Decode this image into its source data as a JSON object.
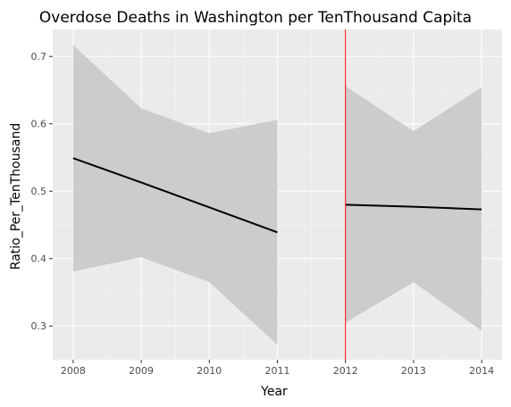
{
  "chart_data": {
    "type": "line",
    "title": "Overdose Deaths in Washington per TenThousand Capita",
    "xlabel": "Year",
    "ylabel": "Ratio_Per_TenThousand",
    "xlim": [
      2007.7,
      2014.3
    ],
    "ylim": [
      0.25,
      0.74
    ],
    "x_ticks": [
      "2008",
      "2009",
      "2010",
      "2011",
      "2012",
      "2013",
      "2014"
    ],
    "y_ticks": [
      "0.3",
      "0.4",
      "0.5",
      "0.6",
      "0.7"
    ],
    "grid": true,
    "vertical_line": {
      "x": 2012,
      "color": "#ff0000"
    },
    "series": [
      {
        "x": [
          2008,
          2009,
          2010,
          2011
        ],
        "values": [
          0.549,
          0.513,
          0.476,
          0.439
        ],
        "ci_lower": [
          0.381,
          0.402,
          0.365,
          0.272
        ],
        "ci_upper": [
          0.717,
          0.623,
          0.586,
          0.606
        ],
        "color": "#000000",
        "band_color": "#cccccc"
      },
      {
        "x": [
          2012,
          2013,
          2014
        ],
        "values": [
          0.48,
          0.477,
          0.473
        ],
        "ci_lower": [
          0.305,
          0.365,
          0.293
        ],
        "ci_upper": [
          0.656,
          0.589,
          0.654
        ],
        "color": "#000000",
        "band_color": "#cccccc"
      }
    ],
    "colors": {
      "panel": "#ebebeb",
      "grid_major": "#ffffff",
      "text": "#4d4d4d"
    }
  }
}
